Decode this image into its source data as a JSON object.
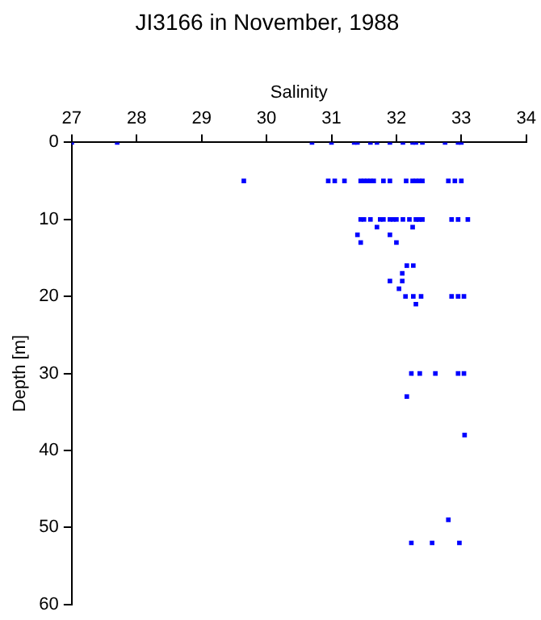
{
  "chart_data": {
    "type": "scatter",
    "title": "JI3166 in November, 1988",
    "xlabel": "Salinity",
    "ylabel": "Depth [m]",
    "xlim": [
      27,
      34
    ],
    "xticks": [
      27,
      28,
      29,
      30,
      31,
      32,
      33,
      34
    ],
    "ylim": [
      60,
      0
    ],
    "yticks": [
      0,
      10,
      20,
      30,
      40,
      50,
      60
    ],
    "grid": false,
    "legend": false,
    "marker": "square",
    "series": [
      {
        "color": "#0000ff",
        "x": [
          27.0,
          27.7,
          30.7,
          31.0,
          31.35,
          31.4,
          31.6,
          31.7,
          31.9,
          32.1,
          32.25,
          32.3,
          32.4,
          32.75,
          32.95,
          33.0,
          29.65,
          30.95,
          31.05,
          31.2,
          31.45,
          31.5,
          31.55,
          31.6,
          31.65,
          31.8,
          31.9,
          32.15,
          32.25,
          32.3,
          32.35,
          32.4,
          32.8,
          32.9,
          33.0,
          31.45,
          31.5,
          31.6,
          31.75,
          31.8,
          31.9,
          31.95,
          32.0,
          32.1,
          32.2,
          32.3,
          32.35,
          32.4,
          32.85,
          32.95,
          33.1,
          31.7,
          32.25,
          31.4,
          31.9,
          31.45,
          32.0,
          32.16,
          32.26,
          32.09,
          31.9,
          32.09,
          32.04,
          32.14,
          32.26,
          32.38,
          32.85,
          32.95,
          33.04,
          32.3,
          32.23,
          32.36,
          32.6,
          32.95,
          33.04,
          32.16,
          33.05,
          32.8,
          32.23,
          32.55,
          32.97
        ],
        "values": [
          0,
          0,
          0,
          0,
          0,
          0,
          0,
          0,
          0,
          0,
          0,
          0,
          0,
          0,
          0,
          0,
          5,
          5,
          5,
          5,
          5,
          5,
          5,
          5,
          5,
          5,
          5,
          5,
          5,
          5,
          5,
          5,
          5,
          5,
          5,
          10,
          10,
          10,
          10,
          10,
          10,
          10,
          10,
          10,
          10,
          10,
          10,
          10,
          10,
          10,
          10,
          11,
          11,
          12,
          12,
          13,
          13,
          16,
          16,
          17,
          18,
          18,
          19,
          20,
          20,
          20,
          20,
          20,
          20,
          21,
          30,
          30,
          30,
          30,
          30,
          33,
          38,
          49,
          52,
          52,
          52
        ]
      }
    ]
  }
}
